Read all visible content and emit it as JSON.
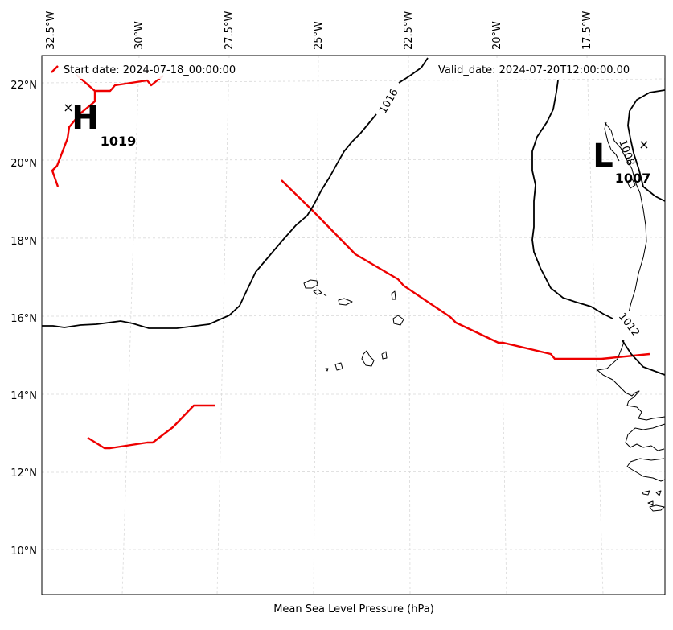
{
  "map": {
    "legend_start": "Start date: 2024-07-18_00:00:00",
    "valid_date": "Valid_date: 2024-07-20T12:00:00.00",
    "footer": "Mean Sea Level Pressure (hPa)",
    "lon_ticks": [
      "32.5°W",
      "30°W",
      "27.5°W",
      "25°W",
      "22.5°W",
      "20°W",
      "17.5°W"
    ],
    "lat_ticks": [
      "22°N",
      "20°N",
      "18°N",
      "16°N",
      "14°N",
      "12°N",
      "10°N"
    ],
    "high": {
      "symbol": "H",
      "value": "1019"
    },
    "low": {
      "symbol": "L",
      "value": "1007"
    },
    "isobar_labels": [
      "1016",
      "1012",
      "1008"
    ],
    "colors": {
      "track": "#ee0000",
      "isobar": "#000000",
      "coast": "#000000",
      "grid": "#d9d9d9"
    }
  }
}
